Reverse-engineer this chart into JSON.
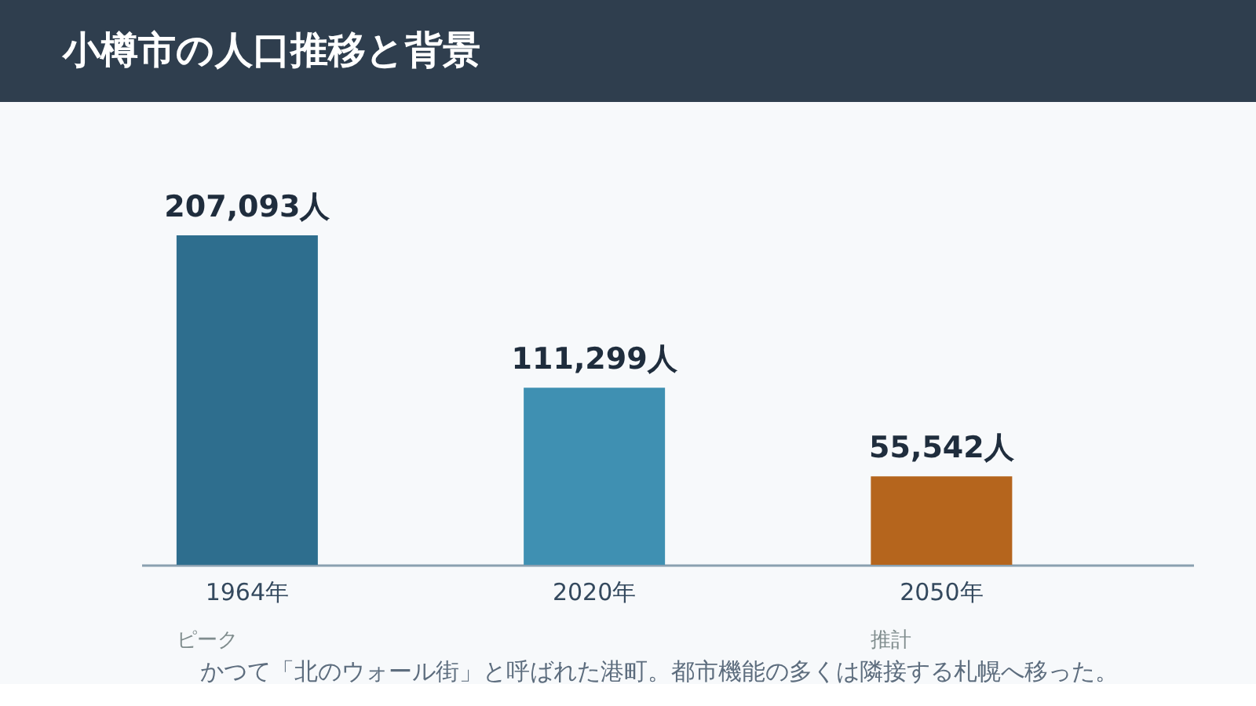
{
  "chart_data": {
    "type": "bar",
    "title": "小樽市の人口推移と背景",
    "categories": [
      "1964年",
      "2020年",
      "2050年"
    ],
    "values": [
      207093,
      111299,
      55542
    ],
    "colors": [
      "#2e6e8e",
      "#3f90b2",
      "#b5651d"
    ],
    "data_labels": true,
    "value_labels": [
      "207,093人",
      "111,299人",
      "55,542人"
    ],
    "annotations": [
      "ピーク",
      "推計",
      "かつて「北のウォール街」と呼ばれた港町。都市機能の多くは隣接する札幌へ移った。"
    ]
  }
}
